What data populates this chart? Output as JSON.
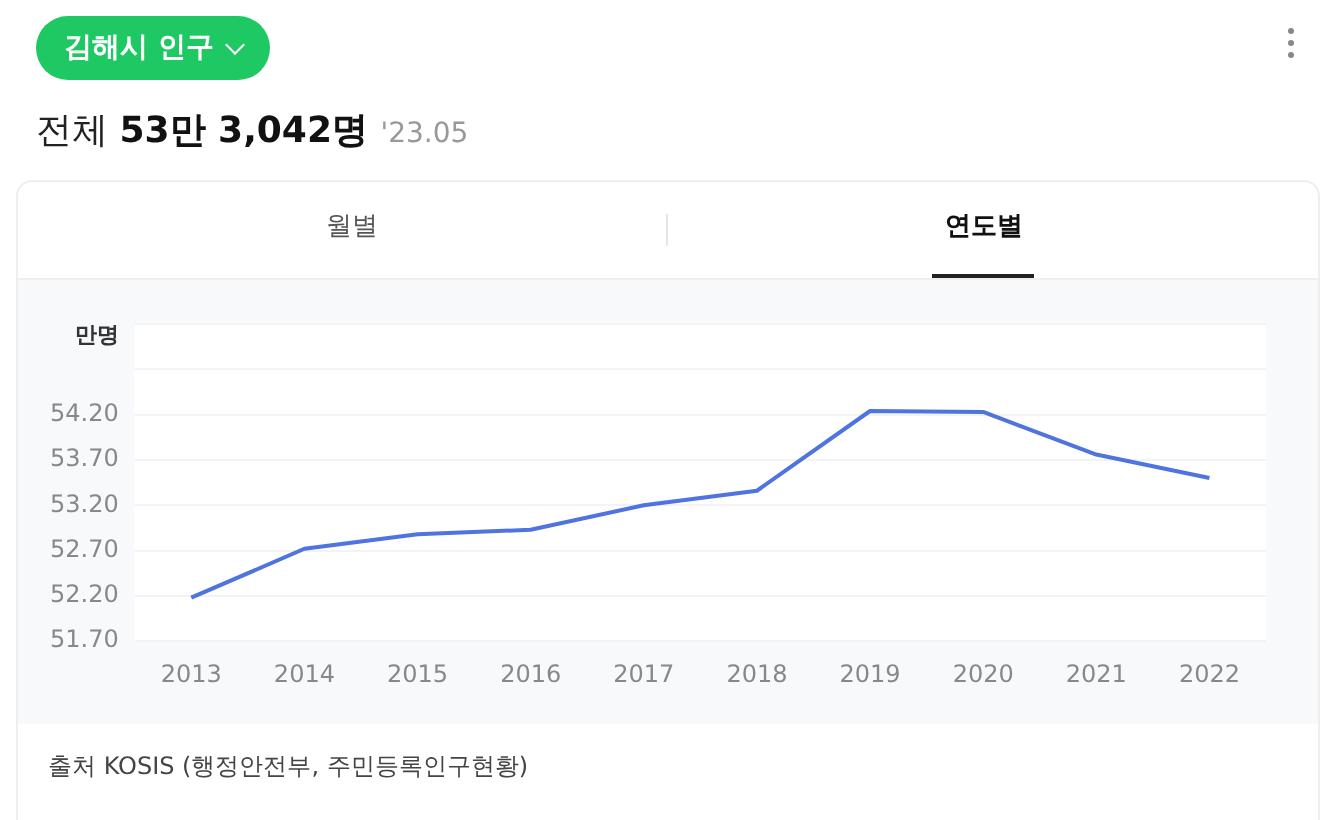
{
  "chart_data": {
    "type": "line",
    "title": "김해시 인구",
    "subtitle": "전체 53만 3,042명 '23.05",
    "ylabel": "만명",
    "categories": [
      "2013",
      "2014",
      "2015",
      "2016",
      "2017",
      "2018",
      "2019",
      "2020",
      "2021",
      "2022"
    ],
    "series": [
      {
        "color": "#4f74e0",
        "values": [
          52.18,
          52.72,
          52.88,
          52.93,
          53.2,
          53.36,
          54.24,
          54.23,
          53.76,
          53.5
        ]
      }
    ],
    "ylim": [
      51.7,
      55.2
    ],
    "yticks": [
      {
        "value": 51.7,
        "label": "51.70"
      },
      {
        "value": 52.2,
        "label": "52.20"
      },
      {
        "value": 52.7,
        "label": "52.70"
      },
      {
        "value": 53.2,
        "label": "53.20"
      },
      {
        "value": 53.7,
        "label": "53.70"
      },
      {
        "value": 54.2,
        "label": "54.20"
      },
      {
        "value": 54.7,
        "label": null
      },
      {
        "value": 55.2,
        "label": null
      }
    ],
    "grid": "y",
    "legend": false,
    "marker": "none",
    "line_style": "solid",
    "annotations": [
      "월별",
      "연도별",
      "출처 KOSIS (행정안전부, 주민등록인구현황)"
    ]
  }
}
